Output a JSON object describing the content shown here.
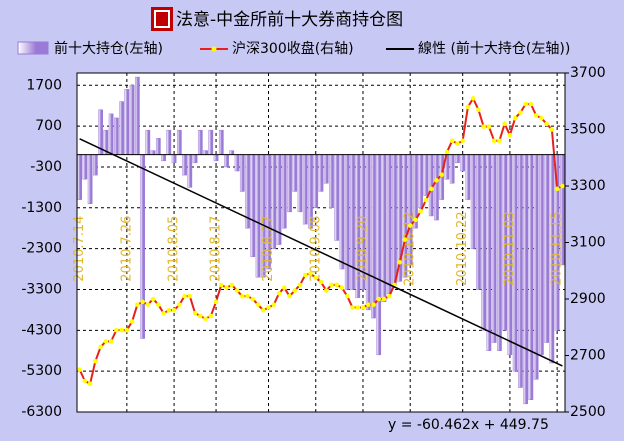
{
  "chart_data": {
    "type": "combo",
    "title": "法意-中金所前十大券商持仓图",
    "categories": [
      "2010.7.14",
      null,
      null,
      null,
      null,
      null,
      null,
      null,
      null,
      "2010.7.26",
      null,
      null,
      null,
      null,
      null,
      null,
      null,
      null,
      "2010.8.05",
      null,
      null,
      null,
      null,
      null,
      null,
      null,
      "2010.8.17",
      null,
      null,
      null,
      null,
      null,
      null,
      null,
      null,
      null,
      "2010.8.27",
      null,
      null,
      null,
      null,
      null,
      null,
      null,
      null,
      "2010.9.08",
      null,
      null,
      null,
      null,
      null,
      null,
      null,
      null,
      "2010.9.20",
      null,
      null,
      null,
      null,
      null,
      null,
      null,
      null,
      "2010.10.12",
      null,
      null,
      null,
      null,
      null,
      null,
      null,
      null,
      null,
      "2010.10.22",
      null,
      null,
      null,
      null,
      null,
      null,
      null,
      null,
      "2010.11.03",
      null,
      null,
      null,
      null,
      null,
      null,
      null,
      null,
      "2010.11.15",
      null
    ],
    "series": [
      {
        "name": "前十大持仓(左轴)",
        "type": "bar",
        "color": "#9a7ad6",
        "values": [
          -1100,
          -600,
          -1200,
          -500,
          1100,
          600,
          1000,
          900,
          1300,
          1600,
          1700,
          1900,
          -4500,
          600,
          100,
          400,
          -150,
          600,
          -200,
          600,
          -500,
          -800,
          -200,
          600,
          100,
          600,
          -150,
          600,
          -300,
          100,
          -400,
          -900,
          -1800,
          -2500,
          -3000,
          -3000,
          -2800,
          -2300,
          -2200,
          -1800,
          -1400,
          -900,
          -1400,
          -1700,
          -1800,
          -1300,
          -900,
          -700,
          -1300,
          -2100,
          -2800,
          -3300,
          -3300,
          -3500,
          -3300,
          -3800,
          -4000,
          -4900,
          -3600,
          -3400,
          -3200,
          -3100,
          -3000,
          -2700,
          -1800,
          -1300,
          -1000,
          -1500,
          -1600,
          -1100,
          -600,
          -700,
          -200,
          -400,
          -1100,
          -2300,
          -3300,
          -4300,
          -4800,
          -4600,
          -4800,
          -4300,
          -4900,
          -5300,
          -5700,
          -6100,
          -6000,
          -5500,
          -4900,
          -4600,
          -5100,
          -4300,
          -2700
        ]
      },
      {
        "name": "沪深300收盘(右轴)",
        "type": "line",
        "axis": "y2",
        "color": "#e8201c",
        "marker_color": "#ffff00",
        "values": [
          2650,
          2610,
          2600,
          2680,
          2730,
          2750,
          2750,
          2790,
          2790,
          2790,
          2820,
          2880,
          2890,
          2880,
          2900,
          2880,
          2850,
          2860,
          2860,
          2880,
          2910,
          2910,
          2850,
          2840,
          2830,
          2840,
          2890,
          2950,
          2940,
          2950,
          2930,
          2910,
          2910,
          2900,
          2880,
          2860,
          2870,
          2880,
          2920,
          2940,
          2910,
          2930,
          2950,
          2985,
          2990,
          2975,
          2960,
          2930,
          2950,
          2950,
          2940,
          2910,
          2870,
          2870,
          2870,
          2880,
          2880,
          2900,
          2900,
          2910,
          2950,
          3030,
          3110,
          3160,
          3180,
          3210,
          3250,
          3290,
          3320,
          3340,
          3420,
          3460,
          3450,
          3460,
          3580,
          3610,
          3570,
          3510,
          3510,
          3460,
          3460,
          3520,
          3480,
          3540,
          3560,
          3590,
          3590,
          3550,
          3540,
          3520,
          3500,
          3290,
          3300
        ]
      }
    ],
    "trendline": {
      "name": "線性 (前十大持仓(左轴))",
      "color": "#000000",
      "slope": -60.462,
      "intercept": 449.75,
      "equation": "y = -60.462x + 449.75"
    },
    "ylim": [
      -6300,
      2000
    ],
    "yticks": [
      -6300,
      -5300,
      -4300,
      -3300,
      -2300,
      -1300,
      -300,
      700,
      1700
    ],
    "y2lim": [
      2500,
      3700
    ],
    "y2ticks": [
      2500,
      2700,
      2900,
      3100,
      3300,
      3500,
      3700
    ],
    "grid": true,
    "label_color": "#e0b830"
  }
}
